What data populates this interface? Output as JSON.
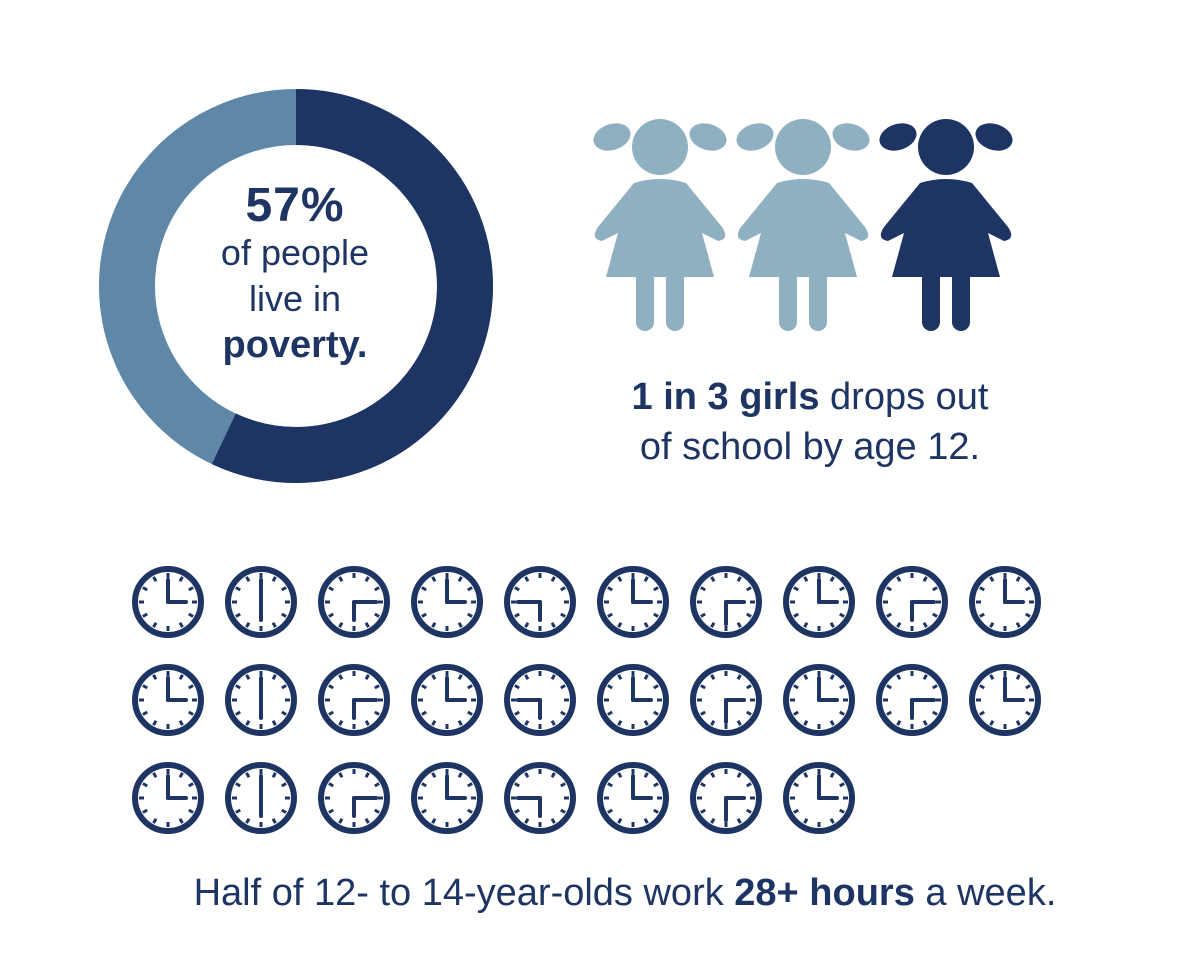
{
  "poverty": {
    "percent_value": 0.57,
    "percent_label": "57%",
    "line1": "of people",
    "line2": "live in",
    "line3": "poverty.",
    "colors": {
      "filled": "#1e3564",
      "remaining": "#5f87a8"
    }
  },
  "girls": {
    "count_total": 3,
    "count_highlight": 1,
    "colors": {
      "highlight": "#1e3564",
      "muted": "#8fb0c1"
    },
    "bold_text": "1 in 3 girls",
    "text_rest": " drops out",
    "line2": "of school by age 12."
  },
  "work_hours": {
    "clock_count": 28,
    "per_row": 10,
    "clock_color": "#1e3564",
    "text_before": "Half of 12- to 14-year-olds work ",
    "bold_text": "28+ hours",
    "text_after": " a week."
  }
}
